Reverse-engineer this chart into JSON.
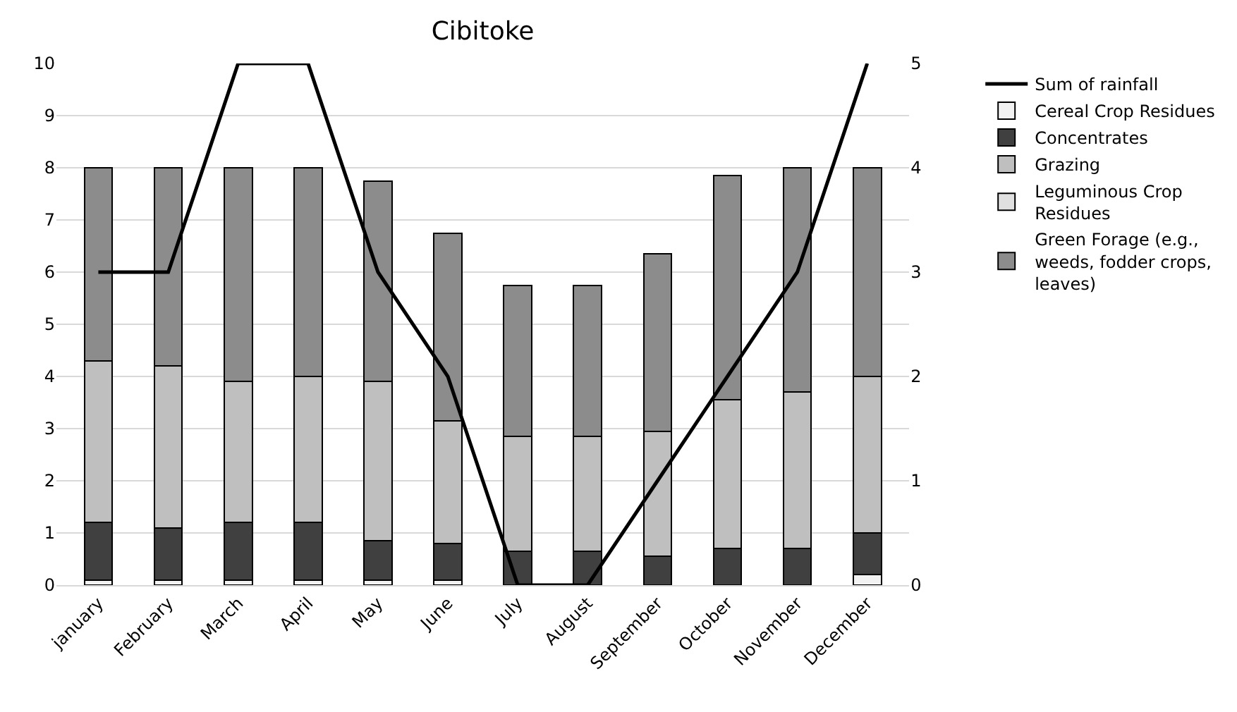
{
  "chart_data": {
    "type": "bar",
    "title": "Cibitoke",
    "stacked": true,
    "categories": [
      "january",
      "February",
      "March",
      "April",
      "May",
      "June",
      "July",
      "August",
      "September",
      "October",
      "November",
      "December"
    ],
    "series": [
      {
        "name": "Cereal Crop Residues",
        "color": "#f2f2f2",
        "values": [
          0.1,
          0.1,
          0.1,
          0.1,
          0.1,
          0.1,
          0,
          0,
          0,
          0,
          0,
          0.2
        ]
      },
      {
        "name": "Concentrates",
        "color": "#404040",
        "values": [
          1.1,
          1.0,
          1.1,
          1.1,
          0.75,
          0.7,
          0.65,
          0.65,
          0.55,
          0.7,
          0.7,
          0.8
        ]
      },
      {
        "name": "Grazing",
        "color": "#bfbfbf",
        "values": [
          3.1,
          3.1,
          2.7,
          2.8,
          3.05,
          2.35,
          2.2,
          2.2,
          2.4,
          2.85,
          3.0,
          3.0
        ]
      },
      {
        "name": "Leguminous Crop Residues",
        "color": "#e0e0e0",
        "values": [
          0,
          0,
          0,
          0,
          0,
          0,
          0,
          0,
          0,
          0,
          0,
          0
        ]
      },
      {
        "name": "Green Forage (e.g., weeds, fodder crops, leaves)",
        "color": "#8c8c8c",
        "values": [
          3.7,
          3.8,
          4.1,
          4.0,
          3.85,
          3.6,
          2.9,
          2.9,
          3.4,
          4.3,
          4.3,
          4.0
        ]
      },
      {
        "name": "Sum of rainfall",
        "type": "line",
        "axis": "y2",
        "color": "#000000",
        "values": [
          3,
          3,
          5,
          5,
          3,
          2,
          0,
          0,
          1,
          2,
          3,
          5
        ]
      }
    ],
    "ylim": [
      0,
      10
    ],
    "yticks": [
      0,
      1,
      2,
      3,
      4,
      5,
      6,
      7,
      8,
      9,
      10
    ],
    "y2lim": [
      0,
      5
    ],
    "y2ticks": [
      0,
      1,
      2,
      3,
      4,
      5
    ],
    "grid": "y",
    "legend": "right",
    "marker": "none",
    "line_style": "solid"
  }
}
